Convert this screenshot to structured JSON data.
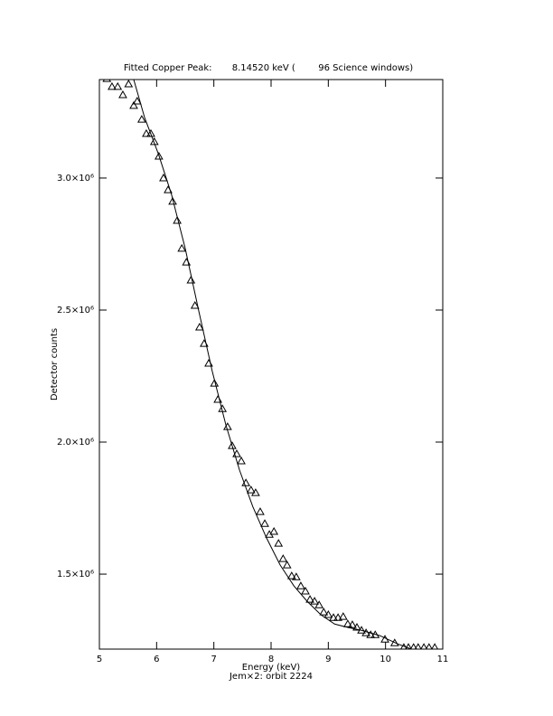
{
  "chart_data": {
    "type": "scatter",
    "title": "Fitted Copper Peak:       8.14520 keV (        96 Science windows)",
    "xlabel": "Energy (keV)",
    "subtitle": "Jem×2: orbit 2224",
    "ylabel": "Detector counts",
    "xlim": [
      5,
      11
    ],
    "xticks": [
      5,
      6,
      7,
      8,
      9,
      10,
      11
    ],
    "ylim": [
      1216000,
      3373000
    ],
    "yticks": [
      {
        "value": 1500000,
        "label": "1.5×10⁶"
      },
      {
        "value": 2000000,
        "label": "2.0×10⁶"
      },
      {
        "value": 2500000,
        "label": "2.5×10⁶"
      },
      {
        "value": 3000000,
        "label": "3.0×10⁶"
      }
    ],
    "series": [
      {
        "type": "scatter",
        "marker": "triangle",
        "color": "#000000",
        "x": [
          5.13,
          5.22,
          5.32,
          5.41,
          5.51,
          5.6,
          5.66,
          5.74,
          5.82,
          5.9,
          5.96,
          6.04,
          6.12,
          6.2,
          6.28,
          6.36,
          6.44,
          6.52,
          6.6,
          6.67,
          6.75,
          6.83,
          6.91,
          7.01,
          7.07,
          7.15,
          7.24,
          7.32,
          7.4,
          7.48,
          7.56,
          7.65,
          7.73,
          7.81,
          7.89,
          7.97,
          8.05,
          8.13,
          8.21,
          8.28,
          8.36,
          8.44,
          8.52,
          8.6,
          8.68,
          8.76,
          8.84,
          8.92,
          9.0,
          9.09,
          9.17,
          9.26,
          9.34,
          9.42,
          9.5,
          9.58,
          9.66,
          9.74,
          9.82,
          9.99,
          10.16,
          10.32,
          10.4,
          10.49,
          10.57,
          10.67,
          10.76,
          10.86
        ],
        "values": [
          3376000,
          3346000,
          3346000,
          3315000,
          3356000,
          3274000,
          3291000,
          3222000,
          3168000,
          3168000,
          3137000,
          3082000,
          3000000,
          2955000,
          2911000,
          2839000,
          2733000,
          2681000,
          2613000,
          2517000,
          2435000,
          2373000,
          2298000,
          2222000,
          2161000,
          2126000,
          2058000,
          1986000,
          1955000,
          1928000,
          1845000,
          1818000,
          1808000,
          1736000,
          1691000,
          1650000,
          1661000,
          1616000,
          1558000,
          1534000,
          1493000,
          1489000,
          1455000,
          1435000,
          1404000,
          1397000,
          1383000,
          1356000,
          1346000,
          1335000,
          1335000,
          1339000,
          1311000,
          1308000,
          1298000,
          1287000,
          1277000,
          1270000,
          1270000,
          1253000,
          1239000,
          1222000,
          1222000,
          1222000,
          1222000,
          1222000,
          1222000,
          1222000
        ]
      },
      {
        "type": "line",
        "color": "#000000",
        "x": [
          5.6,
          5.79,
          6.03,
          6.26,
          6.5,
          6.74,
          6.97,
          7.21,
          7.45,
          7.68,
          7.92,
          8.16,
          8.4,
          8.63,
          8.87,
          9.11,
          9.34,
          9.58,
          9.9,
          10.21,
          10.45
        ],
        "values": [
          3373000,
          3229000,
          3092000,
          2938000,
          2733000,
          2493000,
          2270000,
          2065000,
          1893000,
          1756000,
          1637000,
          1534000,
          1455000,
          1397000,
          1346000,
          1311000,
          1298000,
          1287000,
          1267000,
          1236000,
          1216000
        ]
      }
    ]
  }
}
